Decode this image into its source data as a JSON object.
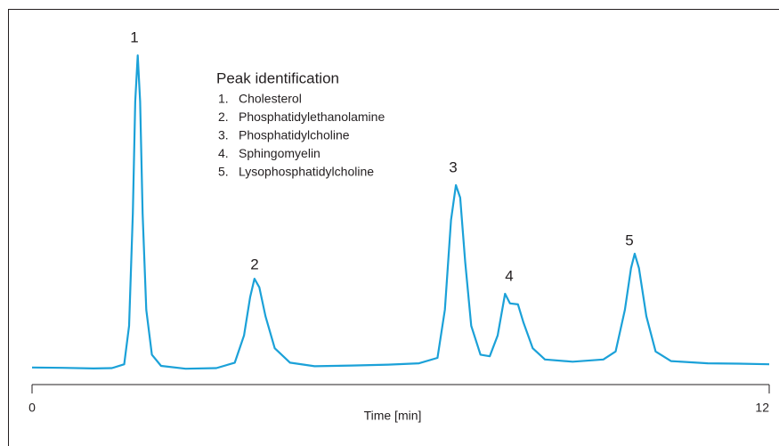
{
  "chart_data": {
    "type": "line",
    "x_label": "Time [min]",
    "xlim": [
      0,
      12
    ],
    "xticks": [
      0,
      12
    ],
    "ylim": [
      0,
      100
    ],
    "series": [
      {
        "color": "#1ba1d8",
        "x": [
          0,
          0.5,
          1.0,
          1.3,
          1.5,
          1.58,
          1.64,
          1.68,
          1.72,
          1.76,
          1.8,
          1.86,
          1.95,
          2.1,
          2.5,
          3.0,
          3.3,
          3.45,
          3.55,
          3.62,
          3.7,
          3.8,
          3.95,
          4.2,
          4.6,
          5.2,
          5.8,
          6.3,
          6.6,
          6.72,
          6.82,
          6.9,
          6.97,
          7.05,
          7.15,
          7.3,
          7.45,
          7.58,
          7.7,
          7.78,
          7.91,
          8.0,
          8.15,
          8.35,
          8.8,
          9.3,
          9.5,
          9.65,
          9.75,
          9.81,
          9.88,
          10.0,
          10.15,
          10.4,
          11.0,
          11.5,
          12
        ],
        "values": [
          2.0,
          1.9,
          1.7,
          1.8,
          3,
          15,
          50,
          85,
          99.4,
          85,
          50,
          20,
          6,
          2.5,
          1.6,
          1.8,
          3.5,
          12,
          24,
          29.7,
          27,
          18,
          8,
          3.5,
          2.4,
          2.6,
          2.9,
          3.3,
          5,
          20,
          48,
          58.9,
          55,
          35,
          15,
          6,
          5.5,
          12,
          25,
          22,
          21.7,
          16,
          8,
          4.5,
          3.8,
          4.5,
          7,
          20,
          33,
          37.5,
          33,
          18,
          7,
          4,
          3.3,
          3.2,
          3.0
        ]
      }
    ],
    "annotations": [
      "1",
      "2",
      "3",
      "4",
      "5"
    ],
    "peak_identification": {
      "title": "Peak identification",
      "items": [
        {
          "number": "1.",
          "name": "Cholesterol"
        },
        {
          "number": "2.",
          "name": "Phosphatidylethanolamine"
        },
        {
          "number": "3.",
          "name": "Phosphatidylcholine"
        },
        {
          "number": "4.",
          "name": "Sphingomyelin"
        },
        {
          "number": "5.",
          "name": "Lysophosphatidylcholine"
        }
      ]
    }
  }
}
